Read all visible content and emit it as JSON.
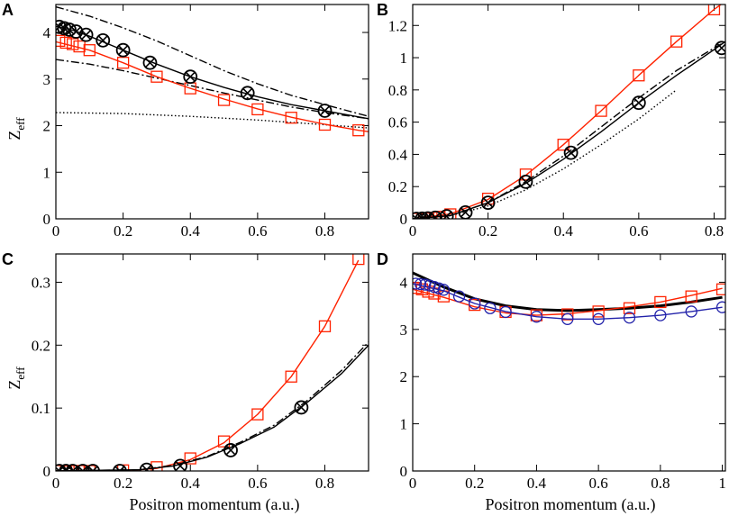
{
  "chart_data": [
    {
      "type": "line",
      "panel": "A",
      "xlabel": "",
      "ylabel": "Z",
      "ylabel_sub": "eff",
      "xlim": [
        0,
        0.93
      ],
      "ylim": [
        0,
        4.6
      ],
      "xticks": [
        0,
        0.2,
        0.4,
        0.6,
        0.8
      ],
      "xtick_labels": [
        "0",
        "0.2",
        "0.4",
        "0.6",
        "0.8"
      ],
      "yticks": [
        0,
        1,
        2,
        3,
        4
      ],
      "ytick_labels": [
        "0",
        "1",
        "2",
        "3",
        "4"
      ],
      "series": [
        {
          "name": "solid black",
          "style": "solid",
          "color": "#000000",
          "x": [
            0,
            0.05,
            0.1,
            0.2,
            0.3,
            0.4,
            0.5,
            0.6,
            0.7,
            0.8,
            0.93
          ],
          "y": [
            4.13,
            4.05,
            3.92,
            3.62,
            3.32,
            3.05,
            2.82,
            2.62,
            2.45,
            2.32,
            2.15
          ]
        },
        {
          "name": "dash-dot upper",
          "style": "dashdot",
          "color": "#000000",
          "x": [
            0,
            0.1,
            0.2,
            0.3,
            0.4,
            0.5,
            0.6,
            0.7,
            0.8,
            0.93
          ],
          "y": [
            4.55,
            4.35,
            4.1,
            3.82,
            3.5,
            3.18,
            2.9,
            2.65,
            2.45,
            2.2
          ]
        },
        {
          "name": "dash-dot lower",
          "style": "dashdot",
          "color": "#000000",
          "x": [
            0,
            0.1,
            0.2,
            0.3,
            0.4,
            0.5,
            0.6,
            0.7,
            0.8,
            0.93
          ],
          "y": [
            3.42,
            3.32,
            3.18,
            3.02,
            2.86,
            2.7,
            2.55,
            2.4,
            2.28,
            2.15
          ]
        },
        {
          "name": "dotted",
          "style": "dotted",
          "color": "#000000",
          "x": [
            0,
            0.2,
            0.4,
            0.6,
            0.8,
            0.93
          ],
          "y": [
            2.28,
            2.26,
            2.2,
            2.12,
            2.02,
            1.95
          ]
        },
        {
          "name": "red fit",
          "style": "solid",
          "color": "#ff2200",
          "x": [
            0,
            0.1,
            0.2,
            0.3,
            0.4,
            0.5,
            0.6,
            0.7,
            0.8,
            0.9,
            0.93
          ],
          "y": [
            3.8,
            3.62,
            3.35,
            3.05,
            2.8,
            2.57,
            2.36,
            2.18,
            2.03,
            1.9,
            1.87
          ]
        },
        {
          "name": "red squares",
          "style": "none",
          "color": "#ff2200",
          "marker": "square",
          "x": [
            0.01,
            0.03,
            0.05,
            0.07,
            0.1,
            0.2,
            0.3,
            0.4,
            0.5,
            0.6,
            0.7,
            0.8,
            0.9
          ],
          "y": [
            3.82,
            3.78,
            3.75,
            3.7,
            3.62,
            3.35,
            3.05,
            2.8,
            2.55,
            2.35,
            2.17,
            2.02,
            1.9
          ]
        },
        {
          "name": "black crossed circles",
          "style": "none",
          "color": "#000000",
          "marker": "xcircle",
          "x": [
            0.01,
            0.025,
            0.04,
            0.06,
            0.09,
            0.14,
            0.2,
            0.28,
            0.4,
            0.57,
            0.8
          ],
          "y": [
            4.12,
            4.09,
            4.06,
            4.02,
            3.95,
            3.83,
            3.62,
            3.35,
            3.05,
            2.7,
            2.32
          ]
        }
      ]
    },
    {
      "type": "line",
      "panel": "B",
      "xlabel": "",
      "ylabel": "",
      "xlim": [
        0,
        0.83
      ],
      "ylim": [
        0,
        1.33
      ],
      "xticks": [
        0,
        0.2,
        0.4,
        0.6,
        0.8
      ],
      "xtick_labels": [
        "0",
        "0.2",
        "0.4",
        "0.6",
        "0.8"
      ],
      "yticks": [
        0,
        0.2,
        0.4,
        0.6,
        0.8,
        1,
        1.2
      ],
      "ytick_labels": [
        "0",
        "0.2",
        "0.4",
        "0.6",
        "0.8",
        "1",
        "1.2"
      ],
      "series": [
        {
          "name": "red fit",
          "style": "solid",
          "color": "#ff2200",
          "x": [
            0,
            0.1,
            0.2,
            0.3,
            0.4,
            0.5,
            0.6,
            0.7,
            0.8,
            0.83
          ],
          "y": [
            0,
            0.03,
            0.12,
            0.27,
            0.46,
            0.67,
            0.89,
            1.1,
            1.3,
            1.35
          ]
        },
        {
          "name": "red squares",
          "style": "none",
          "color": "#ff2200",
          "marker": "square",
          "x": [
            0.01,
            0.03,
            0.05,
            0.07,
            0.1,
            0.2,
            0.3,
            0.4,
            0.5,
            0.6,
            0.7,
            0.8
          ],
          "y": [
            0,
            0.003,
            0.007,
            0.013,
            0.028,
            0.125,
            0.275,
            0.46,
            0.67,
            0.89,
            1.1,
            1.3
          ]
        },
        {
          "name": "solid black",
          "style": "solid",
          "color": "#000000",
          "x": [
            0,
            0.1,
            0.2,
            0.3,
            0.4,
            0.5,
            0.6,
            0.7,
            0.8,
            0.83
          ],
          "y": [
            0,
            0.02,
            0.1,
            0.22,
            0.37,
            0.54,
            0.72,
            0.89,
            1.05,
            1.1
          ]
        },
        {
          "name": "dash-dot",
          "style": "dashdot",
          "color": "#000000",
          "x": [
            0,
            0.1,
            0.2,
            0.3,
            0.4,
            0.5,
            0.6,
            0.7,
            0.8,
            0.83
          ],
          "y": [
            0,
            0.02,
            0.1,
            0.23,
            0.39,
            0.57,
            0.75,
            0.92,
            1.06,
            1.1
          ]
        },
        {
          "name": "dotted",
          "style": "dotted",
          "color": "#000000",
          "x": [
            0,
            0.1,
            0.2,
            0.3,
            0.4,
            0.5,
            0.6,
            0.7
          ],
          "y": [
            0,
            0.02,
            0.08,
            0.18,
            0.31,
            0.46,
            0.62,
            0.8
          ]
        },
        {
          "name": "black crossed circles",
          "style": "none",
          "color": "#000000",
          "marker": "xcircle",
          "x": [
            0.01,
            0.025,
            0.04,
            0.06,
            0.09,
            0.14,
            0.2,
            0.3,
            0.42,
            0.6,
            0.82
          ],
          "y": [
            0,
            0.001,
            0.003,
            0.007,
            0.016,
            0.04,
            0.1,
            0.23,
            0.41,
            0.72,
            1.06
          ]
        }
      ]
    },
    {
      "type": "line",
      "panel": "C",
      "xlabel": "Positron momentum (a.u.)",
      "ylabel": "Z",
      "ylabel_sub": "eff",
      "xlim": [
        0,
        0.93
      ],
      "ylim": [
        0,
        0.345
      ],
      "xticks": [
        0,
        0.2,
        0.4,
        0.6,
        0.8
      ],
      "xtick_labels": [
        "0",
        "0.2",
        "0.4",
        "0.6",
        "0.8"
      ],
      "yticks": [
        0,
        0.1,
        0.2,
        0.3
      ],
      "ytick_labels": [
        "0",
        "0.1",
        "0.2",
        "0.3"
      ],
      "series": [
        {
          "name": "red fit",
          "style": "solid",
          "color": "#ff2200",
          "x": [
            0,
            0.2,
            0.3,
            0.4,
            0.5,
            0.6,
            0.7,
            0.8,
            0.9
          ],
          "y": [
            0,
            0,
            0.004,
            0.018,
            0.045,
            0.09,
            0.15,
            0.23,
            0.335
          ]
        },
        {
          "name": "red squares",
          "style": "none",
          "color": "#ff2200",
          "marker": "square",
          "x": [
            0.01,
            0.03,
            0.05,
            0.07,
            0.1,
            0.2,
            0.3,
            0.4,
            0.5,
            0.6,
            0.7,
            0.8,
            0.9
          ],
          "y": [
            0,
            0,
            0,
            0,
            0,
            0.001,
            0.006,
            0.02,
            0.047,
            0.09,
            0.15,
            0.23,
            0.337
          ]
        },
        {
          "name": "solid black",
          "style": "solid",
          "color": "#000000",
          "x": [
            0,
            0.25,
            0.35,
            0.45,
            0.55,
            0.65,
            0.75,
            0.85,
            0.93
          ],
          "y": [
            0,
            0.002,
            0.008,
            0.022,
            0.044,
            0.07,
            0.11,
            0.155,
            0.2
          ]
        },
        {
          "name": "dash-dot",
          "style": "dashdot",
          "color": "#000000",
          "x": [
            0,
            0.25,
            0.35,
            0.45,
            0.55,
            0.65,
            0.75,
            0.85,
            0.93
          ],
          "y": [
            0,
            0.002,
            0.009,
            0.023,
            0.046,
            0.073,
            0.113,
            0.16,
            0.205
          ]
        },
        {
          "name": "black crossed circles",
          "style": "none",
          "color": "#000000",
          "marker": "xcircle",
          "x": [
            0.01,
            0.03,
            0.05,
            0.08,
            0.11,
            0.19,
            0.27,
            0.37,
            0.52,
            0.73
          ],
          "y": [
            0,
            0,
            0,
            0,
            0,
            0,
            0.002,
            0.008,
            0.033,
            0.101
          ]
        }
      ]
    },
    {
      "type": "line",
      "panel": "D",
      "xlabel": "Positron momentum (a.u.)",
      "ylabel": "",
      "xlim": [
        0,
        1.01
      ],
      "ylim": [
        0,
        4.6
      ],
      "xticks": [
        0,
        0.2,
        0.4,
        0.6,
        0.8,
        1
      ],
      "xtick_labels": [
        "0",
        "0.2",
        "0.4",
        "0.6",
        "0.8",
        "1"
      ],
      "yticks": [
        0,
        1,
        2,
        3,
        4
      ],
      "ytick_labels": [
        "0",
        "1",
        "2",
        "3",
        "4"
      ],
      "series": [
        {
          "name": "thick black",
          "style": "solid",
          "color": "#000000",
          "width": 3,
          "x": [
            0,
            0.1,
            0.2,
            0.3,
            0.4,
            0.5,
            0.6,
            0.7,
            0.8,
            0.9,
            1.0
          ],
          "y": [
            4.2,
            3.9,
            3.65,
            3.5,
            3.42,
            3.4,
            3.42,
            3.45,
            3.5,
            3.58,
            3.68
          ]
        },
        {
          "name": "red fit",
          "style": "solid",
          "color": "#ff2200",
          "x": [
            0,
            0.1,
            0.2,
            0.3,
            0.4,
            0.5,
            0.6,
            0.7,
            0.8,
            0.9,
            1.0
          ],
          "y": [
            3.85,
            3.68,
            3.48,
            3.35,
            3.3,
            3.33,
            3.4,
            3.48,
            3.58,
            3.72,
            3.87
          ]
        },
        {
          "name": "red squares",
          "style": "none",
          "color": "#ff2200",
          "marker": "square",
          "x": [
            0.01,
            0.03,
            0.05,
            0.07,
            0.1,
            0.2,
            0.3,
            0.4,
            0.5,
            0.6,
            0.7,
            0.8,
            0.9,
            1.0
          ],
          "y": [
            3.88,
            3.85,
            3.8,
            3.76,
            3.7,
            3.52,
            3.37,
            3.3,
            3.32,
            3.38,
            3.45,
            3.58,
            3.7,
            3.85
          ]
        },
        {
          "name": "blue fit",
          "style": "solid",
          "color": "#2222aa",
          "x": [
            0,
            0.1,
            0.2,
            0.3,
            0.4,
            0.5,
            0.6,
            0.7,
            0.8,
            0.9,
            1.0
          ],
          "y": [
            3.97,
            3.82,
            3.55,
            3.38,
            3.27,
            3.22,
            3.22,
            3.25,
            3.3,
            3.38,
            3.47
          ]
        },
        {
          "name": "blue circles",
          "style": "none",
          "color": "#2222aa",
          "marker": "circle",
          "x": [
            0.01,
            0.025,
            0.04,
            0.055,
            0.07,
            0.085,
            0.1,
            0.15,
            0.2,
            0.25,
            0.3,
            0.4,
            0.5,
            0.6,
            0.7,
            0.8,
            0.9,
            1.0
          ],
          "y": [
            3.97,
            3.96,
            3.95,
            3.93,
            3.9,
            3.87,
            3.84,
            3.7,
            3.55,
            3.45,
            3.37,
            3.27,
            3.22,
            3.22,
            3.25,
            3.3,
            3.38,
            3.47
          ]
        }
      ]
    }
  ]
}
